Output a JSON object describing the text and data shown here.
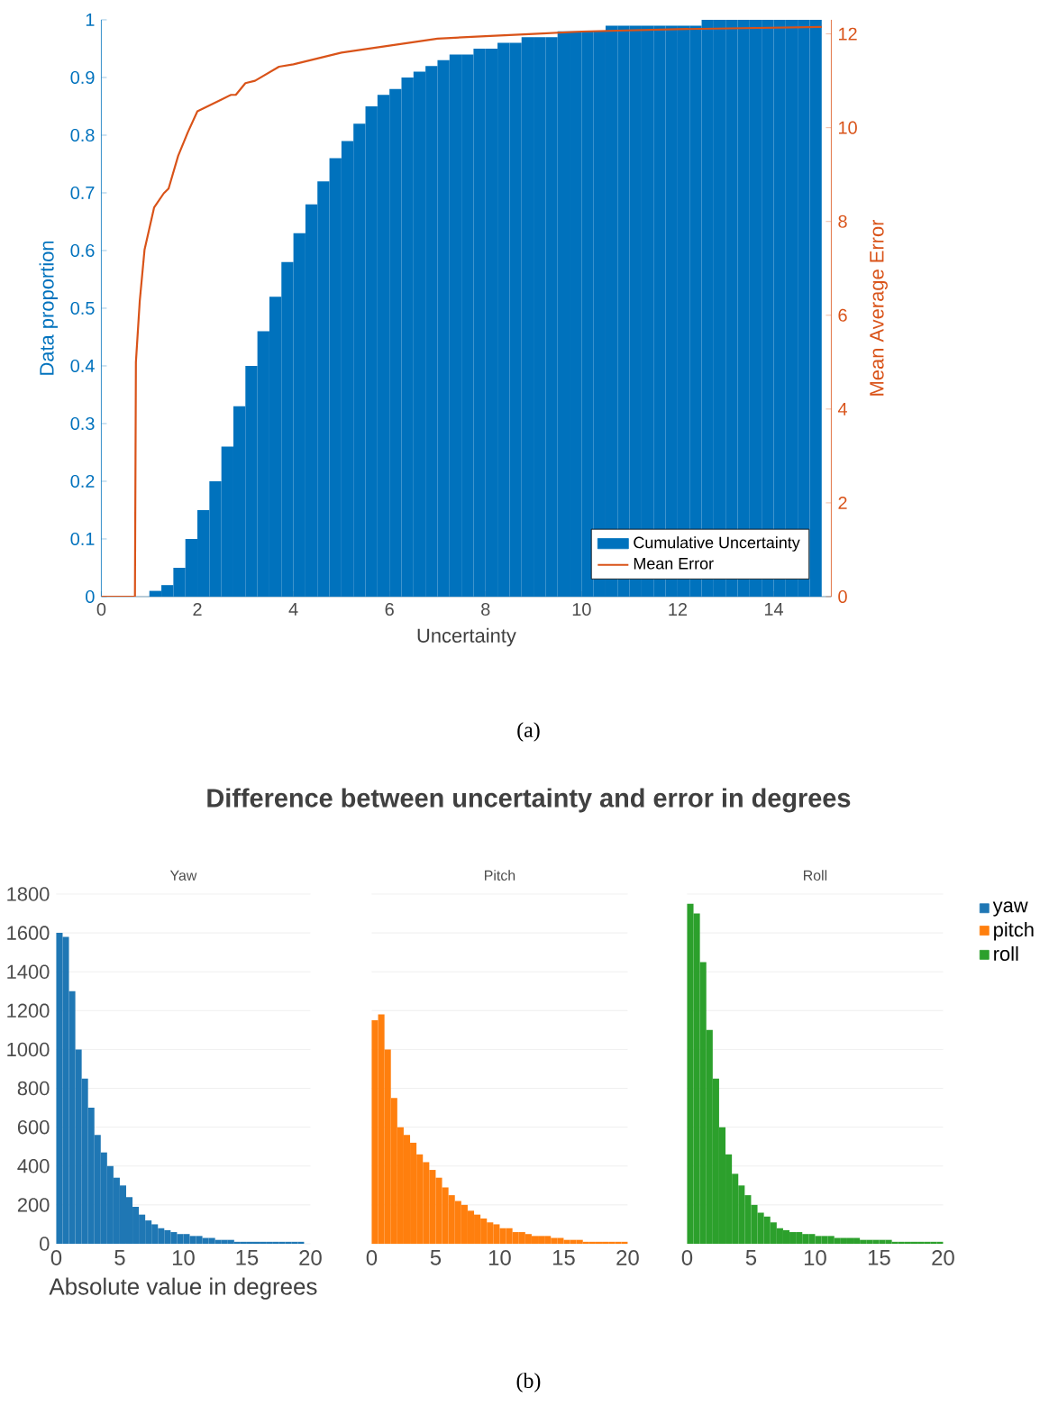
{
  "chart_data": [
    {
      "type": "histogram",
      "xlabel": "Uncertainty",
      "ylabel": "Data proportion",
      "y2label": "Mean Average Error",
      "annotations": [
        "(a)"
      ],
      "legend": "bottom right",
      "grid": false,
      "xlim": [
        0,
        15.2
      ],
      "xticks": [
        0,
        2,
        4,
        6,
        8,
        10,
        12,
        14
      ],
      "ylim": [
        0,
        1
      ],
      "yticks": [
        0,
        0.1,
        0.2,
        0.3,
        0.4,
        0.5,
        0.6,
        0.7,
        0.8,
        0.9,
        1
      ],
      "y2lim": [
        0,
        12.3
      ],
      "y2ticks": [
        0,
        2,
        4,
        6,
        8,
        10,
        12
      ],
      "bins": [
        0,
        0.25,
        0.5,
        0.75,
        1,
        1.25,
        1.5,
        1.75,
        2,
        2.25,
        2.5,
        2.75,
        3,
        3.25,
        3.5,
        3.75,
        4,
        4.25,
        4.5,
        4.75,
        5,
        5.25,
        5.5,
        5.75,
        6,
        6.25,
        6.5,
        6.75,
        7,
        7.25,
        7.5,
        7.75,
        8,
        8.25,
        8.5,
        8.75,
        9,
        9.25,
        9.5,
        9.75,
        10,
        10.25,
        10.5,
        10.75,
        11,
        11.25,
        11.5,
        11.75,
        12,
        12.25,
        12.5,
        12.75,
        13,
        13.25,
        13.5,
        13.75,
        14,
        14.25,
        14.5,
        14.75,
        15
      ],
      "series": [
        {
          "name": "Cumulative Uncertainty",
          "color": "#0072bd",
          "values": [
            0,
            0,
            0,
            0,
            0.01,
            0.02,
            0.05,
            0.1,
            0.15,
            0.2,
            0.26,
            0.33,
            0.4,
            0.46,
            0.52,
            0.58,
            0.63,
            0.68,
            0.72,
            0.76,
            0.79,
            0.82,
            0.85,
            0.87,
            0.88,
            0.9,
            0.91,
            0.92,
            0.93,
            0.94,
            0.94,
            0.95,
            0.95,
            0.96,
            0.96,
            0.97,
            0.97,
            0.97,
            0.98,
            0.98,
            0.98,
            0.98,
            0.99,
            0.99,
            0.99,
            0.99,
            0.99,
            0.99,
            0.99,
            0.99,
            1,
            1,
            1,
            1,
            1,
            1,
            1,
            1,
            1,
            1
          ]
        },
        {
          "name": "Mean Error",
          "type": "line",
          "axis": "y2",
          "color": "#d95319",
          "x": [
            0,
            0.7,
            0.72,
            0.8,
            0.9,
            1.1,
            1.3,
            1.4,
            1.6,
            1.8,
            2,
            2.2,
            2.5,
            2.7,
            2.8,
            3,
            3.2,
            3.7,
            4,
            5,
            6,
            7,
            8,
            9,
            10,
            12,
            15
          ],
          "values": [
            0,
            0,
            5,
            6.3,
            7.4,
            8.3,
            8.6,
            8.7,
            9.4,
            9.9,
            10.35,
            10.45,
            10.6,
            10.7,
            10.7,
            10.95,
            11,
            11.3,
            11.35,
            11.6,
            11.75,
            11.9,
            11.95,
            12,
            12.05,
            12.1,
            12.15
          ]
        }
      ]
    },
    {
      "type": "histogram",
      "title": "Difference between uncertainty and error in degrees",
      "subtitle": "Yaw",
      "xlabel": "Absolute value in degrees",
      "annotations": [
        "(b)"
      ],
      "grid": "y",
      "xlim": [
        0,
        20
      ],
      "xticks": [
        0,
        5,
        10,
        15,
        20
      ],
      "ylim": [
        0,
        1800
      ],
      "yticks": [
        0,
        200,
        400,
        600,
        800,
        1000,
        1200,
        1400,
        1600,
        1800
      ],
      "bins": [
        0,
        0.5,
        1,
        1.5,
        2,
        2.5,
        3,
        3.5,
        4,
        4.5,
        5,
        5.5,
        6,
        6.5,
        7,
        7.5,
        8,
        8.5,
        9,
        9.5,
        10,
        10.5,
        11,
        11.5,
        12,
        12.5,
        13,
        13.5,
        14,
        14.5,
        15,
        15.5,
        16,
        16.5,
        17,
        17.5,
        18,
        18.5,
        19,
        19.5,
        20
      ],
      "series": [
        {
          "name": "yaw",
          "color": "#1f77b4",
          "values": [
            1600,
            1580,
            1300,
            1000,
            850,
            700,
            560,
            470,
            400,
            340,
            300,
            240,
            190,
            150,
            120,
            100,
            80,
            70,
            60,
            50,
            50,
            40,
            40,
            30,
            30,
            20,
            20,
            20,
            10,
            10,
            10,
            10,
            10,
            10,
            10,
            10,
            10,
            10,
            10,
            0
          ]
        }
      ]
    },
    {
      "type": "histogram",
      "subtitle": "Pitch",
      "grid": "y",
      "tick_labels": "x",
      "xlim": [
        0,
        20
      ],
      "xticks": [
        0,
        5,
        10,
        15,
        20
      ],
      "ylim": [
        0,
        1800
      ],
      "yticks": [
        0,
        200,
        400,
        600,
        800,
        1000,
        1200,
        1400,
        1600,
        1800
      ],
      "bins": [
        0,
        0.5,
        1,
        1.5,
        2,
        2.5,
        3,
        3.5,
        4,
        4.5,
        5,
        5.5,
        6,
        6.5,
        7,
        7.5,
        8,
        8.5,
        9,
        9.5,
        10,
        10.5,
        11,
        11.5,
        12,
        12.5,
        13,
        13.5,
        14,
        14.5,
        15,
        15.5,
        16,
        16.5,
        17,
        17.5,
        18,
        18.5,
        19,
        19.5,
        20
      ],
      "series": [
        {
          "name": "pitch",
          "color": "#ff7f0e",
          "values": [
            1150,
            1180,
            1000,
            750,
            600,
            560,
            520,
            460,
            420,
            380,
            340,
            290,
            250,
            220,
            200,
            170,
            150,
            130,
            110,
            100,
            80,
            80,
            60,
            60,
            50,
            40,
            40,
            40,
            30,
            30,
            20,
            20,
            20,
            10,
            10,
            10,
            10,
            10,
            10,
            10
          ]
        }
      ]
    },
    {
      "type": "histogram",
      "subtitle": "Roll",
      "grid": "y",
      "tick_labels": "x",
      "legend": "right",
      "xlim": [
        0,
        20
      ],
      "xticks": [
        0,
        5,
        10,
        15,
        20
      ],
      "ylim": [
        0,
        1800
      ],
      "yticks": [
        0,
        200,
        400,
        600,
        800,
        1000,
        1200,
        1400,
        1600,
        1800
      ],
      "bins": [
        0,
        0.5,
        1,
        1.5,
        2,
        2.5,
        3,
        3.5,
        4,
        4.5,
        5,
        5.5,
        6,
        6.5,
        7,
        7.5,
        8,
        8.5,
        9,
        9.5,
        10,
        10.5,
        11,
        11.5,
        12,
        12.5,
        13,
        13.5,
        14,
        14.5,
        15,
        15.5,
        16,
        16.5,
        17,
        17.5,
        18,
        18.5,
        19,
        19.5,
        20
      ],
      "series": [
        {
          "name": "roll",
          "color": "#2ca02c",
          "values": [
            1750,
            1700,
            1450,
            1100,
            850,
            600,
            460,
            360,
            300,
            250,
            200,
            160,
            140,
            110,
            80,
            70,
            60,
            60,
            50,
            50,
            40,
            40,
            40,
            30,
            30,
            30,
            30,
            20,
            20,
            20,
            20,
            20,
            10,
            10,
            10,
            10,
            10,
            10,
            10,
            10
          ]
        }
      ]
    }
  ]
}
